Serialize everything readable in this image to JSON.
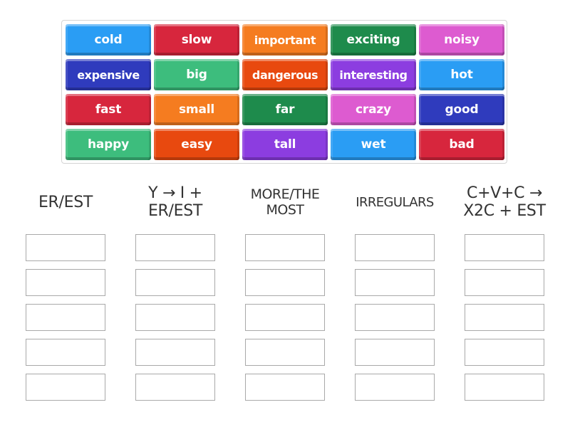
{
  "tiles": [
    {
      "label": "cold",
      "color": "#2a9df4"
    },
    {
      "label": "slow",
      "color": "#d7263d"
    },
    {
      "label": "important",
      "color": "#f57c20"
    },
    {
      "label": "exciting",
      "color": "#1e8b4c"
    },
    {
      "label": "noisy",
      "color": "#dd5bd0"
    },
    {
      "label": "expensive",
      "color": "#2f3bbd"
    },
    {
      "label": "big",
      "color": "#3dbd7d"
    },
    {
      "label": "dangerous",
      "color": "#e8490f"
    },
    {
      "label": "interesting",
      "color": "#8c3de0"
    },
    {
      "label": "hot",
      "color": "#2a9df4"
    },
    {
      "label": "fast",
      "color": "#d7263d"
    },
    {
      "label": "small",
      "color": "#f57c20"
    },
    {
      "label": "far",
      "color": "#1e8b4c"
    },
    {
      "label": "crazy",
      "color": "#dd5bd0"
    },
    {
      "label": "good",
      "color": "#2f3bbd"
    },
    {
      "label": "happy",
      "color": "#3dbd7d"
    },
    {
      "label": "easy",
      "color": "#e8490f"
    },
    {
      "label": "tall",
      "color": "#8c3de0"
    },
    {
      "label": "wet",
      "color": "#2a9df4"
    },
    {
      "label": "bad",
      "color": "#d7263d"
    }
  ],
  "columns": [
    {
      "header_line1": "ER/EST",
      "header_line2": ""
    },
    {
      "header_line1": "Y → I +",
      "header_line2": "ER/EST"
    },
    {
      "header_line1": "MORE/THE",
      "header_line2": "MOST"
    },
    {
      "header_line1": "IRREGULARS",
      "header_line2": ""
    },
    {
      "header_line1": "C+V+C →",
      "header_line2": "X2C + EST"
    }
  ]
}
